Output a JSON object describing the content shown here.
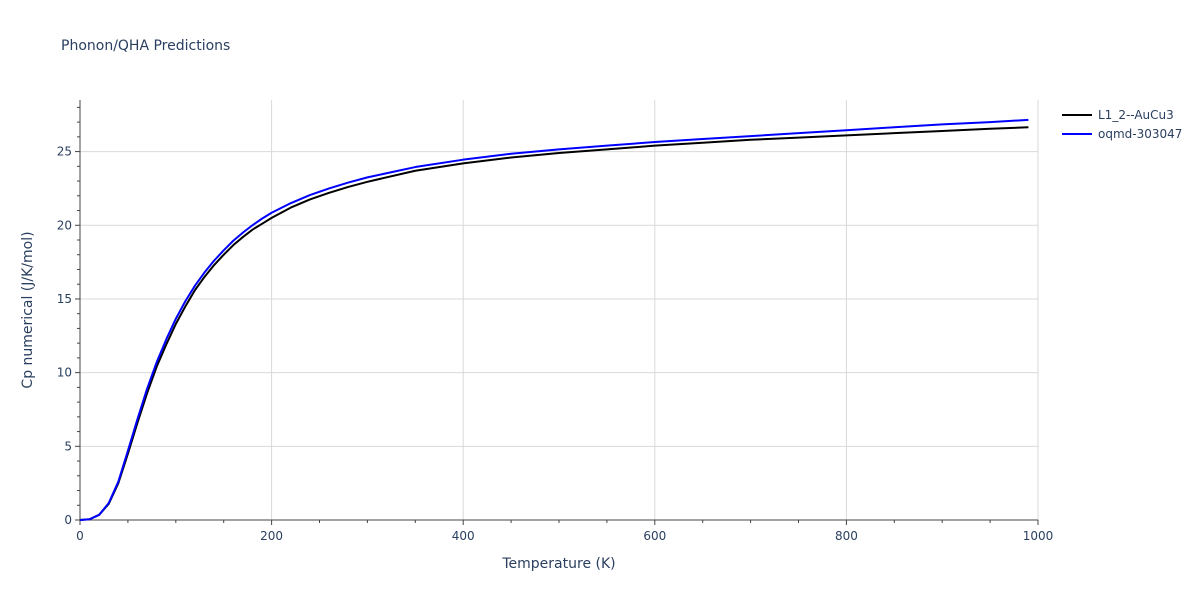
{
  "chart_data": {
    "type": "line",
    "title": "Phonon/QHA Predictions",
    "xlabel": "Temperature (K)",
    "ylabel": "Cp numerical (J/K/mol)",
    "xlim": [
      0,
      1000
    ],
    "ylim": [
      0,
      28.5
    ],
    "xticks": [
      0,
      200,
      400,
      600,
      800,
      1000
    ],
    "xtick_labels": [
      "0",
      "200",
      "400",
      "600",
      "800",
      "1000"
    ],
    "yticks": [
      0,
      5,
      10,
      15,
      20,
      25
    ],
    "ytick_labels": [
      "0",
      "5",
      "10",
      "15",
      "20",
      "25"
    ],
    "grid": true,
    "legend_position": "top-right",
    "series": [
      {
        "name": "L1_2--AuCu3",
        "color": "#000000",
        "x": [
          0,
          10,
          20,
          30,
          40,
          50,
          60,
          70,
          80,
          90,
          100,
          110,
          120,
          130,
          140,
          150,
          160,
          170,
          180,
          190,
          200,
          220,
          240,
          260,
          280,
          300,
          350,
          400,
          450,
          500,
          550,
          600,
          650,
          700,
          750,
          800,
          850,
          900,
          950,
          990
        ],
        "y": [
          0,
          0.05,
          0.35,
          1.1,
          2.5,
          4.5,
          6.6,
          8.6,
          10.4,
          11.9,
          13.3,
          14.5,
          15.6,
          16.5,
          17.3,
          18.0,
          18.65,
          19.2,
          19.7,
          20.1,
          20.5,
          21.2,
          21.75,
          22.2,
          22.6,
          22.95,
          23.7,
          24.2,
          24.6,
          24.9,
          25.15,
          25.4,
          25.6,
          25.8,
          25.95,
          26.1,
          26.25,
          26.4,
          26.55,
          26.65
        ]
      },
      {
        "name": "oqmd-303047",
        "color": "#0000ff",
        "x": [
          0,
          10,
          20,
          30,
          40,
          50,
          60,
          70,
          80,
          90,
          100,
          110,
          120,
          130,
          140,
          150,
          160,
          170,
          180,
          190,
          200,
          220,
          240,
          260,
          280,
          300,
          350,
          400,
          450,
          500,
          550,
          600,
          650,
          700,
          750,
          800,
          850,
          900,
          950,
          990
        ],
        "y": [
          0,
          0.05,
          0.35,
          1.15,
          2.6,
          4.7,
          6.85,
          8.9,
          10.7,
          12.25,
          13.65,
          14.85,
          15.9,
          16.8,
          17.6,
          18.3,
          18.95,
          19.5,
          20.0,
          20.45,
          20.85,
          21.5,
          22.05,
          22.5,
          22.9,
          23.25,
          23.95,
          24.45,
          24.85,
          25.15,
          25.4,
          25.65,
          25.85,
          26.05,
          26.25,
          26.45,
          26.65,
          26.85,
          27.0,
          27.15
        ]
      }
    ]
  }
}
